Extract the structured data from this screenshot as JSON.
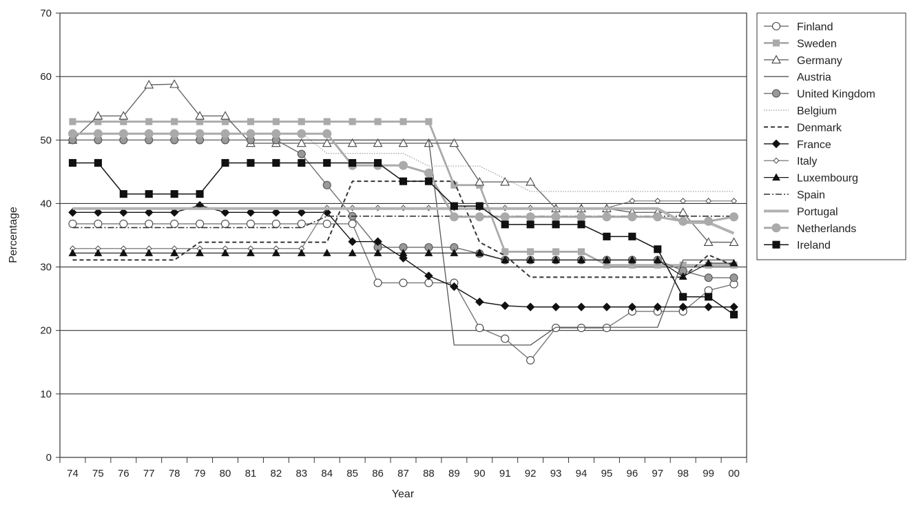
{
  "chart_data": {
    "type": "line",
    "title": "",
    "xlabel": "Year",
    "ylabel": "Percentage",
    "ylim": [
      0,
      70
    ],
    "yticks": [
      0,
      10,
      20,
      30,
      40,
      50,
      60,
      70
    ],
    "grid": "horizontal",
    "legend_position": "right",
    "categories": [
      "74",
      "75",
      "76",
      "77",
      "78",
      "79",
      "80",
      "81",
      "82",
      "83",
      "84",
      "85",
      "86",
      "87",
      "88",
      "89",
      "90",
      "91",
      "92",
      "93",
      "94",
      "95",
      "96",
      "97",
      "98",
      "99",
      "00"
    ],
    "series": [
      {
        "name": "Finland",
        "style": "open-circle",
        "color": "#777777",
        "values": [
          36.8,
          36.8,
          36.8,
          36.8,
          36.8,
          36.8,
          36.8,
          36.8,
          36.8,
          36.8,
          36.8,
          36.8,
          27.5,
          27.5,
          27.5,
          27.5,
          20.4,
          18.7,
          15.3,
          20.4,
          20.4,
          20.4,
          23.0,
          23.0,
          23.0,
          26.3,
          27.3
        ]
      },
      {
        "name": "Sweden",
        "style": "gray-square",
        "color": "#a8a8a8",
        "values": [
          52.9,
          52.9,
          52.9,
          52.9,
          52.9,
          52.9,
          52.9,
          52.9,
          52.9,
          52.9,
          52.9,
          52.9,
          52.9,
          52.9,
          52.9,
          42.9,
          42.9,
          32.4,
          32.4,
          32.4,
          32.4,
          30.3,
          30.3,
          30.3,
          30.3,
          30.3,
          30.3
        ]
      },
      {
        "name": "Germany",
        "style": "open-triangle",
        "color": "#666666",
        "values": [
          50.0,
          53.8,
          53.8,
          58.7,
          58.8,
          53.8,
          53.8,
          49.5,
          49.5,
          49.5,
          49.5,
          49.5,
          49.5,
          49.5,
          49.5,
          49.5,
          43.4,
          43.4,
          43.4,
          39.2,
          39.2,
          39.2,
          38.6,
          38.6,
          38.6,
          33.9,
          33.9
        ]
      },
      {
        "name": "Austria",
        "style": "thin-line",
        "color": "#555555",
        "values": [
          50.0,
          50.0,
          50.0,
          50.0,
          50.0,
          50.0,
          50.0,
          50.0,
          50.0,
          50.0,
          50.0,
          50.0,
          50.0,
          50.0,
          50.0,
          17.7,
          17.7,
          17.7,
          17.7,
          20.5,
          20.5,
          20.5,
          20.5,
          20.5,
          31.1,
          31.1,
          31.1
        ]
      },
      {
        "name": "United Kingdom",
        "style": "gray-circle",
        "color": "#707070",
        "values": [
          50.0,
          50.0,
          50.0,
          50.0,
          50.0,
          50.0,
          50.0,
          50.0,
          50.0,
          47.8,
          42.9,
          38.0,
          33.1,
          33.1,
          33.1,
          33.1,
          32.1,
          31.1,
          31.1,
          31.1,
          31.1,
          31.1,
          31.1,
          31.1,
          29.4,
          28.3,
          28.3
        ]
      },
      {
        "name": "Belgium",
        "style": "dotted",
        "color": "#909090",
        "values": [
          51.1,
          51.1,
          51.1,
          51.1,
          51.1,
          51.1,
          51.1,
          51.1,
          51.1,
          51.1,
          47.9,
          47.9,
          47.9,
          47.9,
          45.9,
          45.9,
          45.9,
          43.9,
          41.9,
          41.9,
          41.9,
          41.9,
          41.9,
          41.9,
          41.9,
          41.9,
          41.9
        ]
      },
      {
        "name": "Denmark",
        "style": "dashed",
        "color": "#333333",
        "values": [
          31.1,
          31.1,
          31.1,
          31.1,
          31.1,
          33.9,
          33.9,
          33.9,
          33.9,
          33.9,
          33.9,
          43.5,
          43.5,
          43.5,
          43.5,
          43.5,
          33.9,
          31.8,
          28.4,
          28.4,
          28.4,
          28.4,
          28.4,
          28.4,
          28.4,
          31.9,
          30.2
        ]
      },
      {
        "name": "France",
        "style": "filled-diamond",
        "color": "#111111",
        "values": [
          38.6,
          38.6,
          38.6,
          38.6,
          38.6,
          39.7,
          38.6,
          38.6,
          38.6,
          38.6,
          38.6,
          34.0,
          34.0,
          31.4,
          28.6,
          26.9,
          24.5,
          23.9,
          23.7,
          23.7,
          23.7,
          23.7,
          23.7,
          23.7,
          23.7,
          23.7,
          23.7
        ]
      },
      {
        "name": "Italy",
        "style": "small-open-diamond",
        "color": "#555555",
        "values": [
          32.9,
          32.9,
          32.9,
          32.9,
          32.9,
          32.9,
          32.9,
          32.9,
          32.9,
          32.9,
          39.3,
          39.3,
          39.3,
          39.3,
          39.3,
          39.3,
          39.3,
          39.3,
          39.3,
          39.3,
          39.3,
          39.3,
          40.4,
          40.4,
          40.4,
          40.4,
          40.4
        ]
      },
      {
        "name": "Luxembourg",
        "style": "filled-triangle",
        "color": "#111111",
        "values": [
          32.2,
          32.2,
          32.2,
          32.2,
          32.2,
          32.2,
          32.2,
          32.2,
          32.2,
          32.2,
          32.2,
          32.2,
          32.2,
          32.2,
          32.2,
          32.2,
          32.2,
          31.1,
          31.1,
          31.1,
          31.1,
          31.1,
          31.1,
          31.1,
          28.5,
          30.6,
          30.6
        ]
      },
      {
        "name": "Spain",
        "style": "dash-dot",
        "color": "#333333",
        "values": [
          36.2,
          36.2,
          36.2,
          36.2,
          36.2,
          36.2,
          36.2,
          36.2,
          36.2,
          36.2,
          38.0,
          38.0,
          38.0,
          38.0,
          38.0,
          38.0,
          38.0,
          38.0,
          38.0,
          38.0,
          38.0,
          38.0,
          38.0,
          38.0,
          38.0,
          38.0,
          38.0
        ]
      },
      {
        "name": "Portugal",
        "style": "thick-gray",
        "color": "#b0b0b0",
        "values": [
          39.2,
          39.2,
          39.2,
          39.2,
          39.2,
          39.2,
          39.2,
          39.2,
          39.2,
          39.2,
          39.2,
          39.2,
          39.2,
          39.2,
          39.2,
          39.2,
          39.2,
          39.2,
          39.2,
          39.2,
          39.2,
          39.2,
          39.2,
          39.2,
          37.0,
          37.0,
          35.3
        ]
      },
      {
        "name": "Netherlands",
        "style": "gray-circle-large",
        "color": "#a0a0a0",
        "values": [
          51.0,
          51.0,
          51.0,
          51.0,
          51.0,
          51.0,
          51.0,
          51.0,
          51.0,
          51.0,
          51.0,
          46.0,
          46.0,
          46.0,
          44.8,
          37.9,
          37.9,
          37.9,
          37.9,
          37.9,
          37.9,
          37.9,
          37.9,
          37.9,
          37.2,
          37.2,
          37.9
        ]
      },
      {
        "name": "Ireland",
        "style": "filled-square",
        "color": "#111111",
        "values": [
          46.4,
          46.4,
          41.5,
          41.5,
          41.5,
          41.5,
          46.4,
          46.4,
          46.4,
          46.4,
          46.4,
          46.4,
          46.4,
          43.5,
          43.5,
          39.6,
          39.6,
          36.7,
          36.7,
          36.7,
          36.7,
          34.8,
          34.8,
          32.8,
          25.3,
          25.3,
          22.5
        ]
      }
    ]
  }
}
